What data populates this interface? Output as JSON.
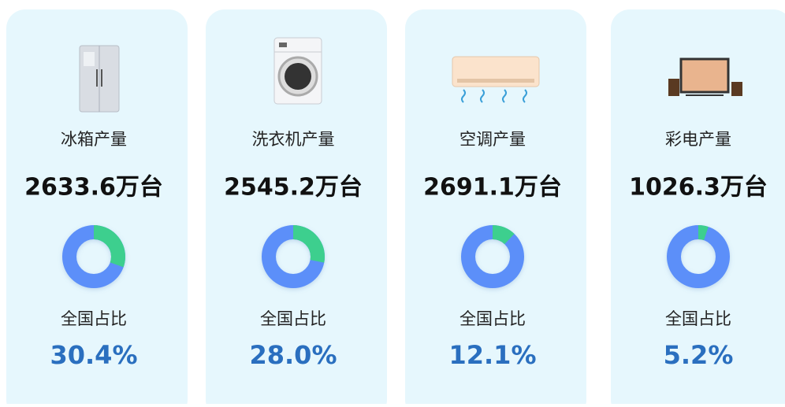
{
  "cards": [
    {
      "title": "冰箱产量",
      "output": "2633.6万台",
      "share_title": "全国占比",
      "share": {
        "value": 30.4,
        "label": "30.4%"
      }
    },
    {
      "title": "洗衣机产量",
      "output": "2545.2万台",
      "share_title": "全国占比",
      "share": {
        "value": 28.0,
        "label": "28.0%"
      }
    },
    {
      "title": "空调产量",
      "output": "2691.1万台",
      "share_title": "全国占比",
      "share": {
        "value": 12.1,
        "label": "12.1%"
      }
    },
    {
      "title": "彩电产量",
      "output": "1026.3万台",
      "share_title": "全国占比",
      "share": {
        "value": 5.2,
        "label": "5.2%"
      }
    }
  ]
}
